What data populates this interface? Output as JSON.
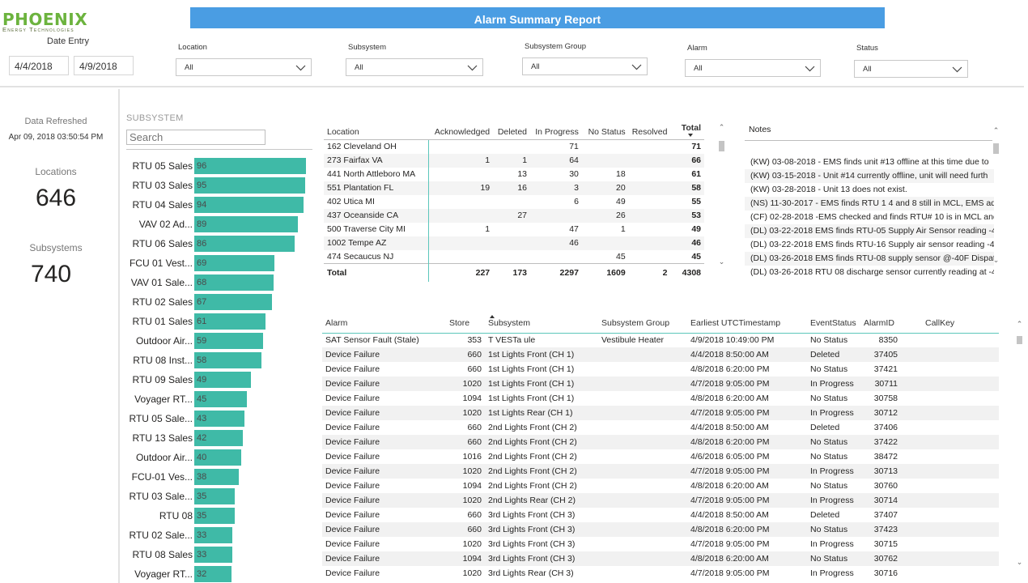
{
  "brand": {
    "name": "PHOENIX",
    "tagline": "Energy Technologies"
  },
  "report_title": "Alarm Summary Report",
  "date_entry": {
    "label": "Date Entry",
    "start": "4/4/2018",
    "end": "4/9/2018"
  },
  "filters": [
    {
      "label": "Location",
      "value": "All"
    },
    {
      "label": "Subsystem",
      "value": "All"
    },
    {
      "label": "Subsystem Group",
      "value": "All"
    },
    {
      "label": "Alarm",
      "value": "All"
    },
    {
      "label": "Status",
      "value": "All"
    }
  ],
  "kpis": {
    "refreshed_label": "Data Refreshed",
    "refreshed_value": "Apr 09, 2018 03:50:54 PM",
    "locations_label": "Locations",
    "locations_value": "646",
    "subsystems_label": "Subsystems",
    "subsystems_value": "740"
  },
  "subsystem_panel": {
    "title": "SUBSYSTEM",
    "search_placeholder": "Search",
    "max_value": 96,
    "bars": [
      {
        "label": "RTU 05 Sales",
        "value": 96
      },
      {
        "label": "RTU 03 Sales",
        "value": 95
      },
      {
        "label": "RTU 04 Sales",
        "value": 94
      },
      {
        "label": "VAV 02 Ad...",
        "value": 89
      },
      {
        "label": "RTU 06 Sales",
        "value": 86
      },
      {
        "label": "FCU 01 Vest...",
        "value": 69
      },
      {
        "label": "VAV 01 Sale...",
        "value": 68
      },
      {
        "label": "RTU 02 Sales",
        "value": 67
      },
      {
        "label": "RTU 01 Sales",
        "value": 61
      },
      {
        "label": "Outdoor Air...",
        "value": 59
      },
      {
        "label": "RTU 08 Inst...",
        "value": 58
      },
      {
        "label": "RTU 09 Sales",
        "value": 49
      },
      {
        "label": "Voyager RT...",
        "value": 45
      },
      {
        "label": "RTU 05 Sale...",
        "value": 43
      },
      {
        "label": "RTU 13 Sales",
        "value": 42
      },
      {
        "label": "Outdoor Air...",
        "value": 40
      },
      {
        "label": "FCU-01 Ves...",
        "value": 38
      },
      {
        "label": "RTU 03 Sale...",
        "value": 35
      },
      {
        "label": "RTU 08",
        "value": 35
      },
      {
        "label": "RTU 02 Sale...",
        "value": 33
      },
      {
        "label": "RTU 08 Sales",
        "value": 33
      },
      {
        "label": "Voyager RT...",
        "value": 32
      }
    ]
  },
  "location_matrix": {
    "headers": [
      "Location",
      "Acknowledged",
      "Deleted",
      "In Progress",
      "No Status",
      "Resolved",
      "Total"
    ],
    "rows": [
      [
        "162 Cleveland OH",
        "",
        "",
        "71",
        "",
        "",
        "71"
      ],
      [
        "273 Fairfax VA",
        "1",
        "1",
        "64",
        "",
        "",
        "66"
      ],
      [
        "441 North Attleboro MA",
        "",
        "13",
        "30",
        "18",
        "",
        "61"
      ],
      [
        "551 Plantation FL",
        "19",
        "16",
        "3",
        "20",
        "",
        "58"
      ],
      [
        "402 Utica MI",
        "",
        "",
        "6",
        "49",
        "",
        "55"
      ],
      [
        "437 Oceanside CA",
        "",
        "27",
        "",
        "26",
        "",
        "53"
      ],
      [
        "500 Traverse City MI",
        "1",
        "",
        "47",
        "1",
        "",
        "49"
      ],
      [
        "1002 Tempe AZ",
        "",
        "",
        "46",
        "",
        "",
        "46"
      ],
      [
        "474 Secaucus NJ",
        "",
        "",
        "",
        "45",
        "",
        "45"
      ]
    ],
    "total": [
      "Total",
      "227",
      "173",
      "2297",
      "1609",
      "2",
      "4308"
    ]
  },
  "notes": {
    "header": "Notes",
    "items": [
      "(KW) 03-08-2018 - EMS finds unit #13 offline at this time due to",
      "(KW) 03-15-2018 - Unit #14 currently offline, unit will need furth",
      "(KW) 03-28-2018 - Unit 13 does not exist.",
      "(NS) 11-30-2017 - EMS finds RTU 1 4 and 8 still in MCL, EMS adv",
      "(CF) 02-28-2018 -EMS checked and finds RTU# 10 is in MCL and",
      "(DL) 03-22-2018 EMS finds RTU-05 Supply Air Sensor reading -40",
      "(DL) 03-22-2018 EMS finds RTU-16 Supply air sensor reading -40",
      "(DL) 03-26-2018 EMS finds RTU-08 supply sensor @-40F Dispatc",
      "(DL) 03-26-2018 RTU 08 discharge sensor currently reading at -40"
    ]
  },
  "alarm_table": {
    "headers": [
      "Alarm",
      "Store",
      "Subsystem",
      "Subsystem Group",
      "Earliest UTCTimestamp",
      "EventStatus",
      "AlarmID",
      "CallKey"
    ],
    "rows": [
      [
        "SAT Sensor Fault (Stale)",
        "353",
        "T    VESTa ule",
        "Vestibule Heater",
        "4/9/2018 10:49:00 PM",
        "No Status",
        "8350",
        ""
      ],
      [
        "Device Failure",
        "660",
        "1st Lights Front (CH 1)",
        "",
        "4/4/2018 8:50:00 AM",
        "Deleted",
        "37405",
        ""
      ],
      [
        "Device Failure",
        "660",
        "1st Lights Front (CH 1)",
        "",
        "4/8/2018 6:20:00 PM",
        "No Status",
        "37421",
        ""
      ],
      [
        "Device Failure",
        "1020",
        "1st Lights Front (CH 1)",
        "",
        "4/7/2018 9:05:00 PM",
        "In Progress",
        "30711",
        ""
      ],
      [
        "Device Failure",
        "1094",
        "1st Lights Front (CH 1)",
        "",
        "4/8/2018 6:20:00 AM",
        "No Status",
        "30758",
        ""
      ],
      [
        "Device Failure",
        "1020",
        "1st Lights Rear (CH 1)",
        "",
        "4/7/2018 9:05:00 PM",
        "In Progress",
        "30712",
        ""
      ],
      [
        "Device Failure",
        "660",
        "2nd Lights Front (CH 2)",
        "",
        "4/4/2018 8:50:00 AM",
        "Deleted",
        "37406",
        ""
      ],
      [
        "Device Failure",
        "660",
        "2nd Lights Front (CH 2)",
        "",
        "4/8/2018 6:20:00 PM",
        "No Status",
        "37422",
        ""
      ],
      [
        "Device Failure",
        "1016",
        "2nd Lights Front (CH 2)",
        "",
        "4/6/2018 6:05:00 PM",
        "No Status",
        "38472",
        ""
      ],
      [
        "Device Failure",
        "1020",
        "2nd Lights Front (CH 2)",
        "",
        "4/7/2018 9:05:00 PM",
        "In Progress",
        "30713",
        ""
      ],
      [
        "Device Failure",
        "1094",
        "2nd Lights Front (CH 2)",
        "",
        "4/8/2018 6:20:00 AM",
        "No Status",
        "30760",
        ""
      ],
      [
        "Device Failure",
        "1020",
        "2nd Lights Rear (CH 2)",
        "",
        "4/7/2018 9:05:00 PM",
        "In Progress",
        "30714",
        ""
      ],
      [
        "Device Failure",
        "660",
        "3rd Lights Front (CH 3)",
        "",
        "4/4/2018 8:50:00 AM",
        "Deleted",
        "37407",
        ""
      ],
      [
        "Device Failure",
        "660",
        "3rd Lights Front (CH 3)",
        "",
        "4/8/2018 6:20:00 PM",
        "No Status",
        "37423",
        ""
      ],
      [
        "Device Failure",
        "1020",
        "3rd Lights Front (CH 3)",
        "",
        "4/7/2018 9:05:00 PM",
        "In Progress",
        "30715",
        ""
      ],
      [
        "Device Failure",
        "1094",
        "3rd Lights Front (CH 3)",
        "",
        "4/8/2018 6:20:00 AM",
        "No Status",
        "30762",
        ""
      ],
      [
        "Device Failure",
        "1020",
        "3rd Lights Rear (CH 3)",
        "",
        "4/7/2018 9:05:00 PM",
        "In Progress",
        "30716",
        ""
      ]
    ]
  },
  "colors": {
    "title_bar": "#4a9de3",
    "bar_fill": "#3fbaa7",
    "brand_green": "#6cb33e"
  }
}
